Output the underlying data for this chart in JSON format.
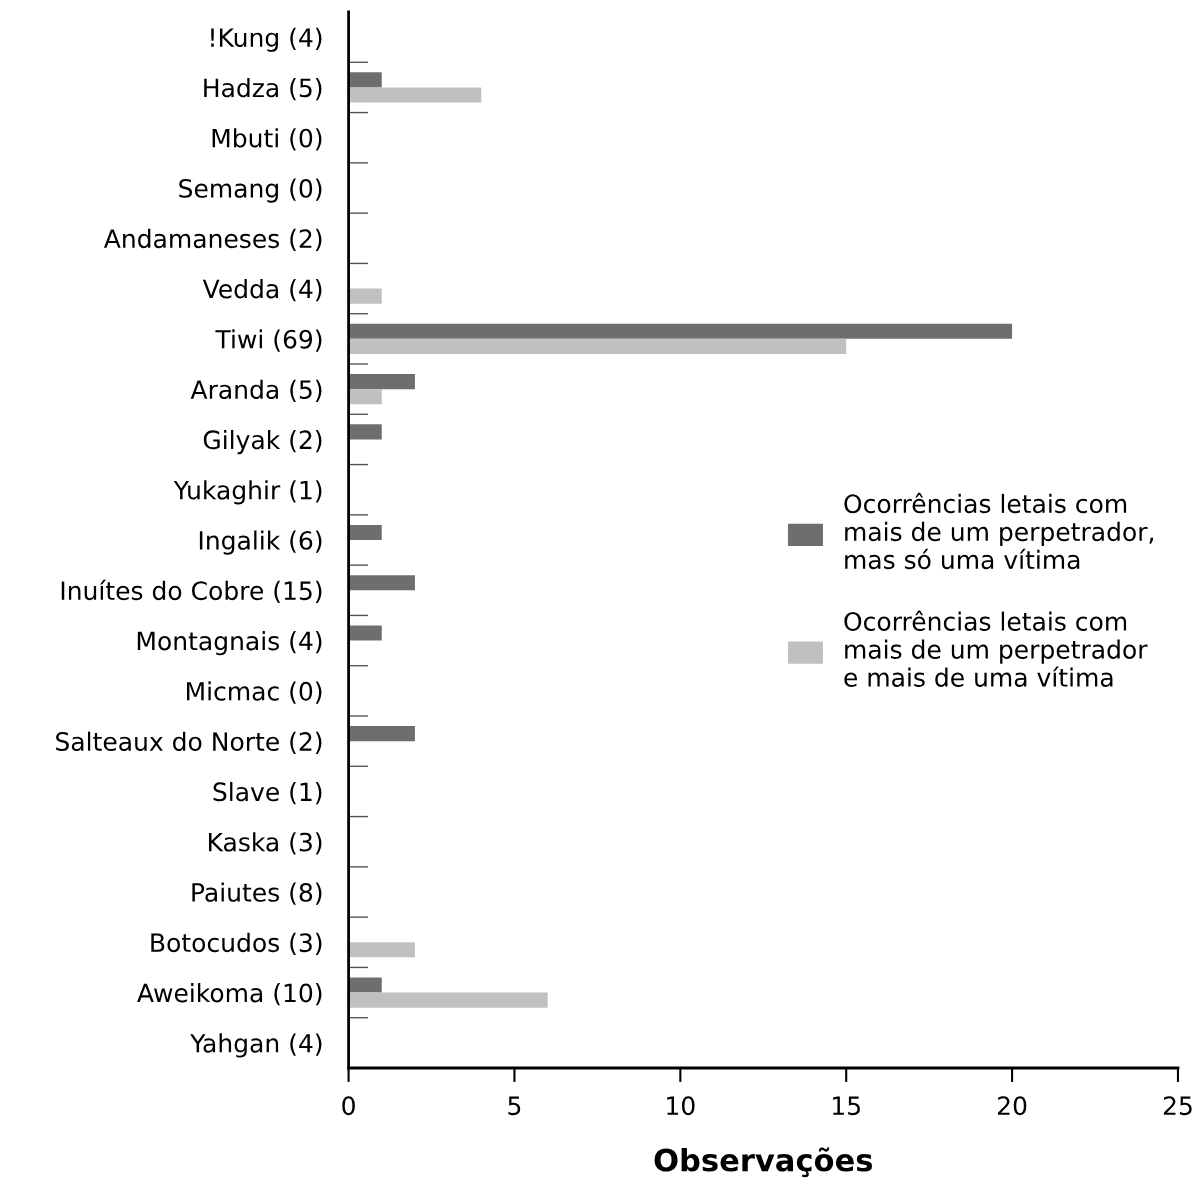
{
  "chart_data": {
    "type": "bar",
    "orientation": "horizontal",
    "xlabel": "Observações",
    "categories": [
      "!Kung (4)",
      "Hadza (5)",
      "Mbuti (0)",
      "Semang (0)",
      "Andamaneses (2)",
      "Vedda (4)",
      "Tiwi (69)",
      "Aranda (5)",
      "Gilyak (2)",
      "Yukaghir (1)",
      "Ingalik (6)",
      "Inuítes do Cobre (15)",
      "Montagnais (4)",
      "Micmac (0)",
      "Salteaux do Norte (2)",
      "Slave (1)",
      "Kaska (3)",
      "Paiutes (8)",
      "Botocudos (3)",
      "Aweikoma (10)",
      "Yahgan (4)"
    ],
    "series": [
      {
        "name": "Ocorrências letais com\nmais de um perpetrador,\nmas só uma vítima",
        "color": "#6e6e6e",
        "values": [
          null,
          1,
          null,
          null,
          null,
          null,
          20,
          2,
          1,
          null,
          1,
          2,
          1,
          null,
          2,
          null,
          null,
          null,
          null,
          1,
          null
        ]
      },
      {
        "name": "Ocorrências letais com\nmais de um perpetrador\ne mais de uma vítima",
        "color": "#c0c0c0",
        "values": [
          null,
          4,
          null,
          null,
          null,
          1,
          15,
          1,
          null,
          null,
          null,
          null,
          null,
          null,
          null,
          null,
          null,
          null,
          2,
          6,
          null
        ]
      }
    ],
    "xlim": [
      0,
      25
    ],
    "xticks": [
      0,
      5,
      10,
      15,
      20,
      25
    ],
    "grid": false,
    "legend": "right"
  }
}
